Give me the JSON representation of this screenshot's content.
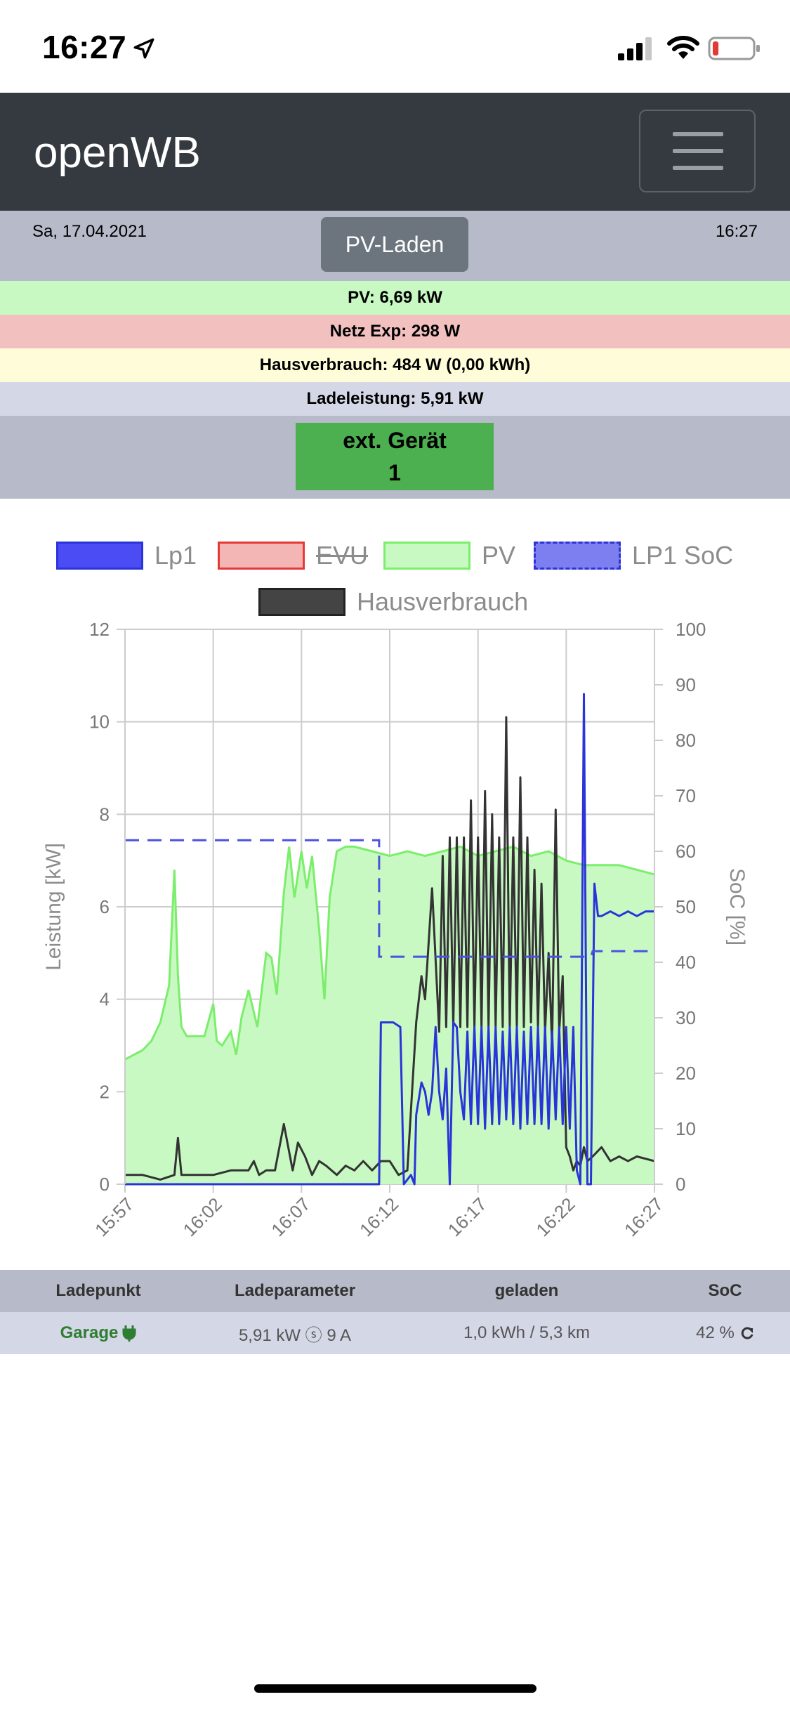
{
  "status_bar": {
    "time": "16:27",
    "battery_level": 0.15
  },
  "navbar": {
    "brand": "openWB"
  },
  "header": {
    "date": "Sa, 17.04.2021",
    "time": "16:27",
    "mode": "PV-Laden"
  },
  "summary": {
    "pv": "PV: 6,69 kW",
    "netz": "Netz Exp: 298 W",
    "hausverbrauch": "Hausverbrauch: 484 W (0,00 kWh)",
    "ladeleistung": "Ladeleistung: 5,91 kW"
  },
  "ext_device": {
    "line1": "ext. Gerät",
    "line2": "1"
  },
  "legend": [
    {
      "label": "Lp1",
      "color": "#4b4cf4",
      "style": "solid"
    },
    {
      "label": "EVU",
      "color": "#f4b5b5",
      "style": "solid",
      "hidden": true
    },
    {
      "label": "PV",
      "color": "#c8f9c3",
      "style": "solid"
    },
    {
      "label": "LP1 SoC",
      "color": "#7d7ef0",
      "style": "dashed"
    },
    {
      "label": "Hausverbrauch",
      "color": "#444444",
      "style": "solid"
    }
  ],
  "colors": {
    "pv_fill": "#c8f9c3",
    "pv_line": "#7bee6b",
    "lp1": "#2b34d8",
    "soc": "#4a52e0",
    "haus": "#333333",
    "grid": "#cccccc"
  },
  "chart_data": {
    "type": "line",
    "x_ticks": [
      "15:57",
      "16:02",
      "16:07",
      "16:12",
      "16:17",
      "16:22",
      "16:27"
    ],
    "x_range": [
      0,
      30
    ],
    "y_left_label": "Leistung [kW]",
    "y_left_ticks": [
      "0",
      "2",
      "4",
      "6",
      "8",
      "10",
      "12"
    ],
    "y_left_range": [
      0,
      12
    ],
    "y_right_label": "SoC [%]",
    "y_right_ticks": [
      "0",
      "10",
      "20",
      "30",
      "40",
      "50",
      "60",
      "70",
      "80",
      "90",
      "100"
    ],
    "y_right_range": [
      0,
      100
    ],
    "grid": true,
    "legend_position": "top",
    "series": [
      {
        "name": "PV",
        "axis": "left",
        "type": "area",
        "x": [
          0,
          1,
          1.5,
          2,
          2.5,
          2.8,
          3.0,
          3.2,
          3.5,
          4.0,
          4.5,
          5.0,
          5.2,
          5.5,
          6.0,
          6.3,
          6.6,
          7.0,
          7.5,
          8.0,
          8.3,
          8.6,
          9.0,
          9.3,
          9.6,
          10.0,
          10.3,
          10.6,
          11.0,
          11.3,
          11.6,
          12.0,
          12.5,
          13.0,
          14.0,
          15.0,
          16.0,
          17.0,
          18.0,
          19.0,
          20.0,
          21.0,
          22.0,
          23.0,
          24.0,
          25.0,
          26.0,
          27.0,
          28.0,
          29.0,
          30.0
        ],
        "y": [
          2.7,
          2.9,
          3.1,
          3.5,
          4.3,
          6.8,
          4.5,
          3.4,
          3.2,
          3.2,
          3.2,
          3.9,
          3.1,
          3.0,
          3.3,
          2.8,
          3.6,
          4.2,
          3.4,
          5.0,
          4.9,
          4.1,
          6.3,
          7.3,
          6.2,
          7.2,
          6.4,
          7.1,
          5.5,
          4.0,
          6.2,
          7.2,
          7.3,
          7.3,
          7.2,
          7.1,
          7.2,
          7.1,
          7.2,
          7.3,
          7.1,
          7.2,
          7.3,
          7.1,
          7.2,
          7.0,
          6.9,
          6.9,
          6.9,
          6.8,
          6.7
        ]
      },
      {
        "name": "Lp1",
        "axis": "left",
        "type": "line",
        "x": [
          0,
          14.4,
          14.5,
          14.8,
          15.2,
          15.6,
          15.8,
          16.2,
          16.4,
          16.5,
          16.8,
          17.0,
          17.2,
          17.4,
          17.6,
          17.8,
          18.0,
          18.2,
          18.4,
          18.6,
          18.8,
          19.0,
          19.2,
          19.4,
          19.6,
          19.8,
          20.0,
          20.2,
          20.4,
          20.6,
          20.8,
          21.0,
          21.2,
          21.4,
          21.6,
          21.8,
          22.0,
          22.2,
          22.4,
          22.6,
          22.8,
          23.0,
          23.2,
          23.4,
          23.6,
          23.8,
          24.0,
          24.2,
          24.4,
          24.6,
          24.8,
          25.0,
          25.2,
          25.4,
          25.6,
          25.8,
          26.0,
          26.2,
          26.4,
          26.6,
          26.8,
          27.0,
          27.5,
          28.0,
          28.5,
          29.0,
          29.5,
          30.0
        ],
        "y": [
          0,
          0,
          3.5,
          3.5,
          3.5,
          3.4,
          0,
          0.2,
          0,
          1.5,
          2.2,
          2.0,
          1.5,
          2.0,
          3.4,
          2.0,
          1.4,
          2.5,
          0,
          3.5,
          3.4,
          2.0,
          1.4,
          3.3,
          1.3,
          3.4,
          1.3,
          3.4,
          1.2,
          3.4,
          1.3,
          3.4,
          1.3,
          3.3,
          1.4,
          3.4,
          1.3,
          3.4,
          1.2,
          3.3,
          1.3,
          3.4,
          1.3,
          3.4,
          1.3,
          3.4,
          1.2,
          3.3,
          1.4,
          3.4,
          1.3,
          3.4,
          1.2,
          3.4,
          0.3,
          0,
          10.6,
          0,
          0,
          6.5,
          5.8,
          5.8,
          5.9,
          5.8,
          5.9,
          5.8,
          5.9,
          5.9
        ]
      },
      {
        "name": "Hausverbrauch",
        "axis": "left",
        "type": "line",
        "x": [
          0,
          1.0,
          2.0,
          2.8,
          3.0,
          3.2,
          3.5,
          4.0,
          5.0,
          6.0,
          7.0,
          7.3,
          7.6,
          8.0,
          8.5,
          9.0,
          9.5,
          9.8,
          10.2,
          10.6,
          11.0,
          11.4,
          12.0,
          12.5,
          13.0,
          13.5,
          14.0,
          14.5,
          15.0,
          15.5,
          16.0,
          16.5,
          16.8,
          17.0,
          17.4,
          17.8,
          18.0,
          18.2,
          18.4,
          18.6,
          18.8,
          19.0,
          19.2,
          19.4,
          19.6,
          19.8,
          20.0,
          20.2,
          20.4,
          20.6,
          20.8,
          21.0,
          21.2,
          21.4,
          21.6,
          21.8,
          22.0,
          22.2,
          22.4,
          22.6,
          22.8,
          23.0,
          23.2,
          23.4,
          23.6,
          23.8,
          24.0,
          24.2,
          24.4,
          24.6,
          24.8,
          25.0,
          25.2,
          25.4,
          25.6,
          25.8,
          26.0,
          26.2,
          26.5,
          27.0,
          27.5,
          28.0,
          28.5,
          29.0,
          30.0
        ],
        "y": [
          0.2,
          0.2,
          0.1,
          0.2,
          1.0,
          0.2,
          0.2,
          0.2,
          0.2,
          0.3,
          0.3,
          0.5,
          0.2,
          0.3,
          0.3,
          1.3,
          0.3,
          0.9,
          0.6,
          0.2,
          0.5,
          0.4,
          0.2,
          0.4,
          0.3,
          0.5,
          0.3,
          0.5,
          0.5,
          0.2,
          0.3,
          3.5,
          4.5,
          4.0,
          6.4,
          3.3,
          7.1,
          3.4,
          7.5,
          3.4,
          7.5,
          3.4,
          7.5,
          3.4,
          8.3,
          3.4,
          7.5,
          3.4,
          8.5,
          3.4,
          8.0,
          3.4,
          7.5,
          3.4,
          10.1,
          3.4,
          7.5,
          3.4,
          8.8,
          3.4,
          7.5,
          3.5,
          6.8,
          3.4,
          6.5,
          3.3,
          5.0,
          3.0,
          8.1,
          3.3,
          4.5,
          0.8,
          0.6,
          0.3,
          0.5,
          0.4,
          0.8,
          0.5,
          0.6,
          0.8,
          0.5,
          0.6,
          0.5,
          0.6,
          0.5
        ]
      },
      {
        "name": "LP1 SoC",
        "axis": "right",
        "type": "line",
        "style": "dashed",
        "x": [
          0,
          14.3,
          14.4,
          14.4,
          26.4,
          26.5,
          30.0
        ],
        "y": [
          62,
          62,
          62,
          41,
          41,
          42,
          42
        ]
      }
    ]
  },
  "table": {
    "headers": [
      "Ladepunkt",
      "Ladeparameter",
      "geladen",
      "SoC"
    ],
    "row": {
      "ladepunkt": "Garage",
      "ladeparameter": "5,91 kW ⓢ 9 A",
      "geladen": "1,0 kWh / 5,3 km",
      "soc": "42 %"
    }
  }
}
